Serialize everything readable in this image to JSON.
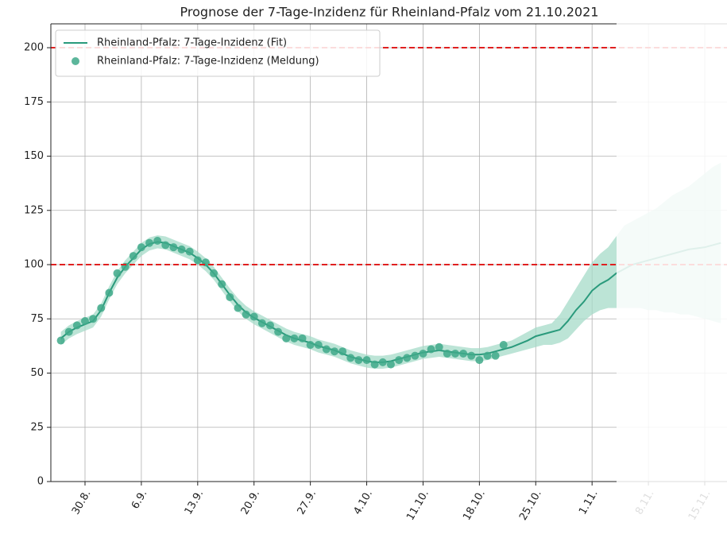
{
  "chart_data": {
    "type": "line",
    "title": "Prognose der 7-Tage-Inzidenz für Rheinland-Pfalz vom 21.10.2021",
    "categories": [
      null,
      null,
      null,
      "30.8.",
      null,
      null,
      null,
      null,
      null,
      null,
      "6.9.",
      null,
      null,
      null,
      null,
      null,
      null,
      "13.9.",
      null,
      null,
      null,
      null,
      null,
      null,
      "20.9.",
      null,
      null,
      null,
      null,
      null,
      null,
      "27.9.",
      null,
      null,
      null,
      null,
      null,
      null,
      "4.10.",
      null,
      null,
      null,
      null,
      null,
      null,
      "11.10.",
      null,
      null,
      null,
      null,
      null,
      null,
      "18.10.",
      null,
      null,
      null,
      null,
      null,
      null,
      "25.10.",
      null,
      null,
      null,
      null,
      null,
      null,
      "1.11.",
      null,
      null,
      null,
      null,
      null,
      null,
      "8.11.",
      null,
      null,
      null,
      null,
      null,
      null,
      "15.11.",
      null,
      null
    ],
    "series": [
      {
        "name": "Rheinland-Pfalz: 7-Tage-Inzidenz (Fit)",
        "color": "#2a9a7c",
        "marker": "line",
        "values": [
          66,
          69,
          71,
          72.5,
          74,
          79,
          87,
          94,
          99,
          103,
          107,
          109.5,
          110.5,
          110,
          108.5,
          107,
          105.5,
          103,
          100,
          96,
          91,
          86,
          81.5,
          78,
          75.5,
          73.5,
          71.5,
          69.5,
          67.5,
          66,
          65,
          64,
          62.5,
          61.5,
          60.5,
          59,
          57.5,
          56.5,
          55.5,
          55,
          55,
          55.5,
          56.5,
          57.5,
          58.5,
          59.5,
          60,
          60.5,
          60,
          59.5,
          59,
          58.5,
          58.5,
          59,
          60,
          61,
          62,
          63.5,
          65,
          67,
          68,
          69,
          70,
          74,
          79,
          83,
          88,
          91,
          93,
          96,
          98,
          100,
          101,
          102,
          103,
          104,
          105,
          106,
          107,
          107.5,
          108,
          109,
          110
        ]
      },
      {
        "name": "Rheinland-Pfalz: 7-Tage-Inzidenz (Meldung)",
        "color": "#3fa98a",
        "marker": "circle",
        "values": [
          65,
          69,
          72,
          74,
          75,
          80,
          87,
          96,
          99,
          104,
          108,
          110,
          111,
          109,
          108,
          107,
          106,
          102,
          101,
          96,
          91,
          85,
          80,
          77,
          76,
          73,
          72,
          69,
          66,
          66,
          66,
          63,
          63,
          61,
          60,
          60,
          57,
          56,
          56,
          54,
          55,
          54,
          56,
          57,
          58,
          59,
          61,
          62,
          59,
          59,
          59,
          58,
          56,
          58,
          58,
          63,
          null,
          null,
          null,
          null,
          null,
          null,
          null,
          null,
          null,
          null,
          null,
          null,
          null,
          null,
          null,
          null,
          null,
          null,
          null,
          null,
          null,
          null,
          null,
          null,
          null,
          null,
          null
        ]
      }
    ],
    "band": {
      "color": "#a6dbc8",
      "lower": [
        63,
        66,
        68,
        69.5,
        71,
        76,
        84,
        91,
        96,
        100,
        104,
        106.5,
        107.5,
        107,
        105.5,
        104,
        102.5,
        100,
        97,
        93,
        88,
        83,
        78.5,
        75,
        72.5,
        70.5,
        68.5,
        66.5,
        64.5,
        63,
        62,
        61,
        59.5,
        58.5,
        57.5,
        56,
        54.5,
        53.5,
        52.5,
        52,
        52,
        52.5,
        53.5,
        54.5,
        55.5,
        56.5,
        57,
        57.5,
        57,
        56.5,
        56,
        55.5,
        55.5,
        56,
        57,
        58,
        59,
        60,
        61,
        62,
        63,
        63,
        64,
        66,
        70,
        74,
        77,
        79,
        80,
        80,
        80,
        80,
        80,
        79,
        79,
        78,
        78,
        77,
        77,
        76,
        75,
        74,
        73
      ],
      "upper": [
        69,
        72,
        74,
        75.5,
        77,
        82,
        90,
        97,
        102,
        106,
        110,
        112.5,
        113.5,
        113,
        111.5,
        110,
        108.5,
        106,
        103,
        99,
        94,
        89,
        84.5,
        81,
        78.5,
        76.5,
        74.5,
        72.5,
        70.5,
        69,
        68,
        67,
        65.5,
        64.5,
        63.5,
        62,
        60.5,
        59.5,
        58.5,
        58,
        58,
        58.5,
        59.5,
        60.5,
        61.5,
        62.5,
        63,
        63.5,
        63,
        62.5,
        62,
        61.5,
        61.5,
        62,
        63,
        64,
        65,
        67,
        69,
        71,
        72,
        73,
        77,
        83,
        89,
        95,
        101,
        105,
        108,
        113,
        118,
        120,
        122,
        124,
        126,
        129,
        132,
        134,
        136,
        139,
        142,
        145,
        147
      ]
    },
    "ylim": [
      0,
      211
    ],
    "yticks": [
      0,
      25,
      50,
      75,
      100,
      125,
      150,
      175,
      200
    ],
    "reference_lines": [
      100,
      200
    ],
    "reference_color": "#e02020",
    "grid": true,
    "legend": "upper left"
  }
}
